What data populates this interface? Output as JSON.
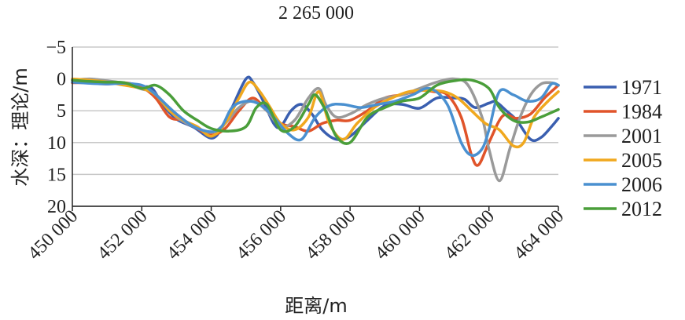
{
  "chart_data": {
    "type": "line",
    "title": "2 265 000",
    "xlabel": "距离/m",
    "ylabel": "水深：理论/m",
    "xlim": [
      450000,
      464000
    ],
    "ylim": [
      -5,
      20
    ],
    "y_inverted": true,
    "x_ticks": [
      450000,
      452000,
      454000,
      456000,
      458000,
      460000,
      462000,
      464000
    ],
    "x_tick_labels": [
      "450 000",
      "452 000",
      "454 000",
      "456 000",
      "458 000",
      "460 000",
      "462 000",
      "464 000"
    ],
    "y_ticks": [
      -5,
      0,
      5,
      10,
      15,
      20
    ],
    "y_tick_labels": [
      "−5",
      "0",
      "5",
      "10",
      "15",
      "20"
    ],
    "grid": "horizontal",
    "legend_position": "right",
    "series": [
      {
        "name": "1971",
        "color": "#3a5fb0",
        "x": [
          450000,
          450500,
          451000,
          451500,
          452000,
          452300,
          452600,
          453000,
          453500,
          454000,
          454300,
          454600,
          455000,
          455200,
          455500,
          455800,
          456000,
          456300,
          456600,
          456900,
          457200,
          457600,
          458000,
          458500,
          459000,
          459500,
          460000,
          460500,
          461000,
          461300,
          461600,
          462000,
          462200,
          462500,
          462800,
          463200,
          463500,
          463800,
          464000
        ],
        "y": [
          0.5,
          0.6,
          0.6,
          0.8,
          1.2,
          1.5,
          4.0,
          6.3,
          7.6,
          9.3,
          7.8,
          4.5,
          0.0,
          0.5,
          3.5,
          7.0,
          7.5,
          5.0,
          4.0,
          5.5,
          8.0,
          9.5,
          9.0,
          6.5,
          4.2,
          4.0,
          4.6,
          3.0,
          3.0,
          3.2,
          4.5,
          3.8,
          3.6,
          5.0,
          6.5,
          9.5,
          9.2,
          7.5,
          6.2
        ]
      },
      {
        "name": "1984",
        "color": "#e0542a",
        "x": [
          450000,
          450500,
          451000,
          451500,
          452000,
          452400,
          452800,
          453200,
          453600,
          454000,
          454400,
          454800,
          455200,
          455600,
          456000,
          456400,
          456800,
          457200,
          457600,
          458000,
          458500,
          459000,
          459500,
          460000,
          460400,
          460800,
          461200,
          461500,
          461700,
          462000,
          462400,
          462800,
          463200,
          463600,
          464000
        ],
        "y": [
          0.6,
          0.6,
          0.8,
          0.6,
          1.3,
          3.0,
          6.0,
          6.5,
          7.8,
          8.8,
          7.8,
          5.0,
          3.0,
          5.0,
          7.0,
          7.5,
          8.2,
          7.0,
          6.5,
          6.5,
          5.0,
          3.0,
          2.5,
          1.8,
          2.0,
          2.5,
          6.0,
          12.0,
          13.5,
          10.0,
          5.8,
          6.2,
          5.5,
          3.0,
          1.0
        ]
      },
      {
        "name": "2001",
        "color": "#9a9a9a",
        "x": [
          450000,
          450500,
          451000,
          451500,
          452000,
          452300,
          452600,
          453000,
          453500,
          454000,
          454400,
          454800,
          455200,
          455600,
          456000,
          456400,
          456800,
          457100,
          457300,
          457600,
          458000,
          458500,
          459000,
          459500,
          460000,
          460500,
          461000,
          461400,
          461800,
          462000,
          462300,
          462600,
          462900,
          463200,
          463500,
          463800,
          464000
        ],
        "y": [
          0.2,
          0.0,
          0.3,
          0.7,
          1.6,
          2.0,
          3.5,
          6.0,
          7.5,
          8.4,
          7.0,
          4.5,
          3.5,
          5.0,
          7.5,
          6.5,
          3.0,
          1.5,
          4.0,
          6.0,
          5.5,
          4.0,
          3.0,
          2.5,
          1.5,
          0.5,
          0.0,
          1.0,
          6.0,
          11.0,
          16.0,
          11.0,
          6.0,
          2.5,
          0.8,
          0.6,
          1.0
        ]
      },
      {
        "name": "2005",
        "color": "#f0a81e",
        "x": [
          450000,
          450500,
          451000,
          451500,
          452000,
          452400,
          452800,
          453200,
          453600,
          454000,
          454400,
          454800,
          455100,
          455400,
          455700,
          456000,
          456400,
          456800,
          457100,
          457400,
          457800,
          458200,
          458700,
          459200,
          459700,
          460200,
          460700,
          461100,
          461500,
          461900,
          462300,
          462700,
          463000,
          463300,
          463700,
          464000
        ],
        "y": [
          0.0,
          0.2,
          0.5,
          1.0,
          1.5,
          2.5,
          5.0,
          6.5,
          7.5,
          9.0,
          7.0,
          3.0,
          0.5,
          2.0,
          4.5,
          7.0,
          8.0,
          6.0,
          2.0,
          7.0,
          9.5,
          7.0,
          4.5,
          3.0,
          2.0,
          1.8,
          2.0,
          3.0,
          5.0,
          7.0,
          8.0,
          10.5,
          10.0,
          6.0,
          3.5,
          2.0
        ]
      },
      {
        "name": "2006",
        "color": "#4a90d0",
        "x": [
          450000,
          450500,
          451000,
          451500,
          452000,
          452300,
          452600,
          453000,
          453500,
          454000,
          454300,
          454600,
          455000,
          455400,
          455800,
          456200,
          456600,
          457000,
          457400,
          457800,
          458300,
          458800,
          459300,
          459800,
          460300,
          460800,
          461200,
          461500,
          461800,
          462000,
          462300,
          462700,
          463100,
          463500,
          463800,
          464000
        ],
        "y": [
          0.5,
          0.7,
          0.8,
          0.7,
          1.0,
          2.0,
          3.5,
          5.5,
          7.5,
          8.3,
          7.5,
          4.5,
          3.5,
          4.0,
          6.0,
          8.5,
          9.5,
          6.0,
          4.2,
          4.0,
          4.5,
          4.0,
          3.5,
          2.5,
          1.5,
          4.0,
          10.0,
          12.0,
          11.0,
          8.0,
          2.0,
          2.5,
          3.5,
          3.0,
          0.8,
          1.0
        ]
      },
      {
        "name": "2012",
        "color": "#4a9e3a",
        "x": [
          450000,
          450500,
          451000,
          451500,
          452000,
          452400,
          452800,
          453200,
          453600,
          454000,
          454500,
          455000,
          455300,
          455600,
          456000,
          456400,
          456800,
          457000,
          457300,
          457600,
          458000,
          458500,
          459000,
          459500,
          460000,
          460500,
          461000,
          461500,
          462000,
          462300,
          462700,
          463100,
          463500,
          464000
        ],
        "y": [
          0.2,
          0.4,
          0.5,
          0.6,
          1.5,
          1.0,
          2.5,
          5.0,
          6.5,
          7.8,
          8.2,
          7.5,
          4.5,
          4.0,
          8.0,
          7.5,
          4.0,
          2.5,
          5.0,
          9.0,
          10.0,
          6.0,
          4.5,
          3.5,
          3.0,
          1.0,
          0.3,
          0.2,
          1.5,
          4.5,
          6.5,
          6.8,
          6.0,
          4.8
        ]
      }
    ]
  }
}
